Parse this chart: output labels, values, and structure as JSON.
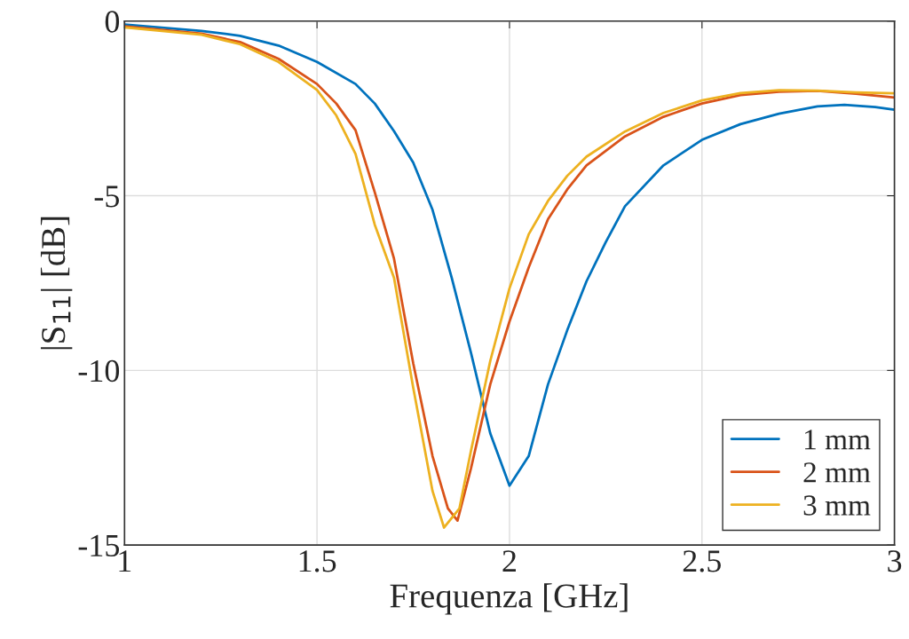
{
  "chart_data": {
    "type": "line",
    "xlabel": "Frequenza [GHz]",
    "ylabel": "|S$_{11}$| [dB]",
    "xlim": [
      1,
      3
    ],
    "xticks": [
      1,
      1.5,
      2,
      2.5,
      3
    ],
    "ylim": [
      -15,
      0
    ],
    "yticks": [
      -15,
      -10,
      -5,
      0
    ],
    "grid": true,
    "legend": "bottom right",
    "line_style": "solid",
    "marker": "none",
    "series": [
      {
        "name": "1 mm",
        "color": "#0072bd",
        "x": [
          1.0,
          1.2,
          1.3,
          1.4,
          1.5,
          1.6,
          1.65,
          1.7,
          1.75,
          1.8,
          1.85,
          1.9,
          1.95,
          2.0,
          2.05,
          2.1,
          2.15,
          2.2,
          2.25,
          2.3,
          2.4,
          2.5,
          2.6,
          2.7,
          2.8,
          2.87,
          2.95,
          3.0
        ],
        "values": [
          -0.1,
          -0.28,
          -0.42,
          -0.7,
          -1.17,
          -1.8,
          -2.36,
          -3.15,
          -4.05,
          -5.4,
          -7.35,
          -9.5,
          -11.8,
          -13.3,
          -12.45,
          -10.4,
          -8.85,
          -7.45,
          -6.33,
          -5.3,
          -4.13,
          -3.4,
          -2.95,
          -2.65,
          -2.44,
          -2.4,
          -2.46,
          -2.54
        ]
      },
      {
        "name": "2 mm",
        "color": "#d95319",
        "x": [
          1.0,
          1.2,
          1.3,
          1.4,
          1.5,
          1.55,
          1.6,
          1.65,
          1.7,
          1.75,
          1.8,
          1.84,
          1.865,
          1.9,
          1.95,
          2.0,
          2.05,
          2.1,
          2.15,
          2.2,
          2.3,
          2.4,
          2.5,
          2.6,
          2.7,
          2.8,
          2.9,
          3.0
        ],
        "values": [
          -0.15,
          -0.36,
          -0.6,
          -1.08,
          -1.8,
          -2.36,
          -3.12,
          -4.9,
          -6.8,
          -9.8,
          -12.45,
          -13.95,
          -14.3,
          -12.8,
          -10.4,
          -8.6,
          -7.05,
          -5.67,
          -4.82,
          -4.13,
          -3.3,
          -2.74,
          -2.36,
          -2.12,
          -2.02,
          -2.0,
          -2.08,
          -2.19
        ]
      },
      {
        "name": "3 mm",
        "color": "#edb120",
        "x": [
          1.0,
          1.2,
          1.3,
          1.4,
          1.5,
          1.55,
          1.6,
          1.65,
          1.7,
          1.75,
          1.8,
          1.83,
          1.87,
          1.9,
          1.95,
          2.0,
          2.05,
          2.1,
          2.15,
          2.2,
          2.3,
          2.4,
          2.5,
          2.6,
          2.7,
          2.8,
          2.9,
          3.0
        ],
        "values": [
          -0.18,
          -0.39,
          -0.66,
          -1.17,
          -1.97,
          -2.7,
          -3.8,
          -5.83,
          -7.35,
          -10.5,
          -13.45,
          -14.5,
          -13.95,
          -12.3,
          -9.73,
          -7.65,
          -6.1,
          -5.15,
          -4.43,
          -3.88,
          -3.16,
          -2.63,
          -2.27,
          -2.06,
          -1.98,
          -1.99,
          -2.04,
          -2.07
        ]
      }
    ]
  }
}
